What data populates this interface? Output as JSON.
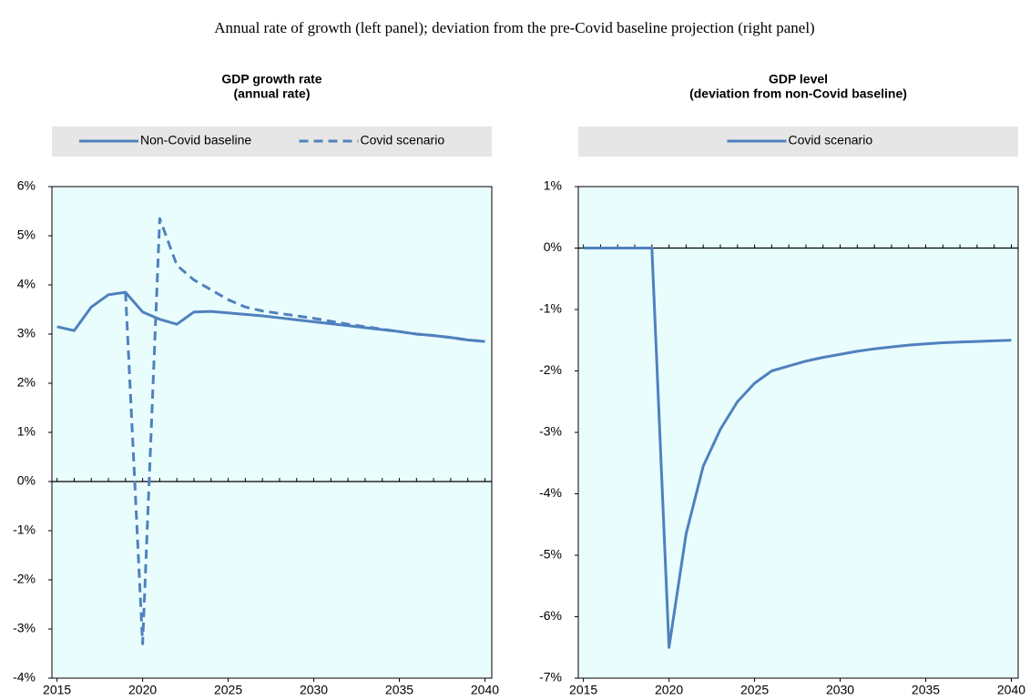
{
  "title": "Annual rate of growth (left panel); deviation from the pre-Covid baseline projection (right panel)",
  "chart_data": [
    {
      "type": "line",
      "title": [
        "GDP growth rate",
        "(annual rate)"
      ],
      "x": [
        2015,
        2016,
        2017,
        2018,
        2019,
        2020,
        2021,
        2022,
        2023,
        2024,
        2025,
        2026,
        2027,
        2028,
        2029,
        2030,
        2031,
        2032,
        2033,
        2034,
        2035,
        2036,
        2037,
        2038,
        2039,
        2040
      ],
      "series": [
        {
          "name": "Non-Covid baseline",
          "color": "#4f81bd",
          "line_style": "solid",
          "values": [
            3.15,
            3.07,
            3.55,
            3.8,
            3.85,
            3.45,
            3.3,
            3.2,
            3.45,
            3.46,
            3.43,
            3.4,
            3.37,
            3.33,
            3.29,
            3.25,
            3.21,
            3.17,
            3.13,
            3.09,
            3.05,
            3.0,
            2.97,
            2.93,
            2.88,
            2.85
          ]
        },
        {
          "name": "Covid scenario",
          "color": "#4f81bd",
          "line_style": "dashed",
          "values": [
            null,
            null,
            null,
            null,
            3.85,
            -3.3,
            5.35,
            4.4,
            4.1,
            3.9,
            3.7,
            3.55,
            3.47,
            3.42,
            3.37,
            3.32,
            3.26,
            3.2,
            3.15,
            3.1,
            3.05,
            3.0,
            2.97,
            2.93,
            2.88,
            2.85
          ]
        }
      ],
      "xlim": [
        2014.7,
        2040.4
      ],
      "xticks": [
        2015,
        2020,
        2025,
        2030,
        2035,
        2040
      ],
      "ylim": [
        -4,
        6
      ],
      "yticks": [
        {
          "value": -4,
          "label": "-4%"
        },
        {
          "value": -3,
          "label": "-3%"
        },
        {
          "value": -2,
          "label": "-2%"
        },
        {
          "value": -1,
          "label": "-1%"
        },
        {
          "value": 0,
          "label": "0%"
        },
        {
          "value": 1,
          "label": "1%"
        },
        {
          "value": 2,
          "label": "2%"
        },
        {
          "value": 3,
          "label": "3%"
        },
        {
          "value": 4,
          "label": "4%"
        },
        {
          "value": 5,
          "label": "5%"
        },
        {
          "value": 6,
          "label": "6%"
        }
      ]
    },
    {
      "type": "line",
      "title": [
        "GDP level",
        "(deviation from non-Covid baseline)"
      ],
      "x": [
        2015,
        2016,
        2017,
        2018,
        2019,
        2020,
        2021,
        2022,
        2023,
        2024,
        2025,
        2026,
        2027,
        2028,
        2029,
        2030,
        2031,
        2032,
        2033,
        2034,
        2035,
        2036,
        2037,
        2038,
        2039,
        2040
      ],
      "series": [
        {
          "name": "Covid scenario",
          "color": "#4f81bd",
          "line_style": "solid",
          "values": [
            0,
            0,
            0,
            0,
            0,
            -6.5,
            -4.65,
            -3.55,
            -2.95,
            -2.5,
            -2.2,
            -2.0,
            -1.92,
            -1.84,
            -1.78,
            -1.73,
            -1.68,
            -1.64,
            -1.61,
            -1.58,
            -1.56,
            -1.54,
            -1.53,
            -1.52,
            -1.51,
            -1.5
          ]
        }
      ],
      "xlim": [
        2014.7,
        2040.4
      ],
      "xticks": [
        2015,
        2020,
        2025,
        2030,
        2035,
        2040
      ],
      "ylim": [
        -7,
        1
      ],
      "yticks": [
        {
          "value": -7,
          "label": "-7%"
        },
        {
          "value": -6,
          "label": "-6%"
        },
        {
          "value": -5,
          "label": "-5%"
        },
        {
          "value": -4,
          "label": "-4%"
        },
        {
          "value": -3,
          "label": "-3%"
        },
        {
          "value": -2,
          "label": "-2%"
        },
        {
          "value": -1,
          "label": "-1%"
        },
        {
          "value": 0,
          "label": "0%"
        },
        {
          "value": 1,
          "label": "1%"
        }
      ]
    }
  ]
}
